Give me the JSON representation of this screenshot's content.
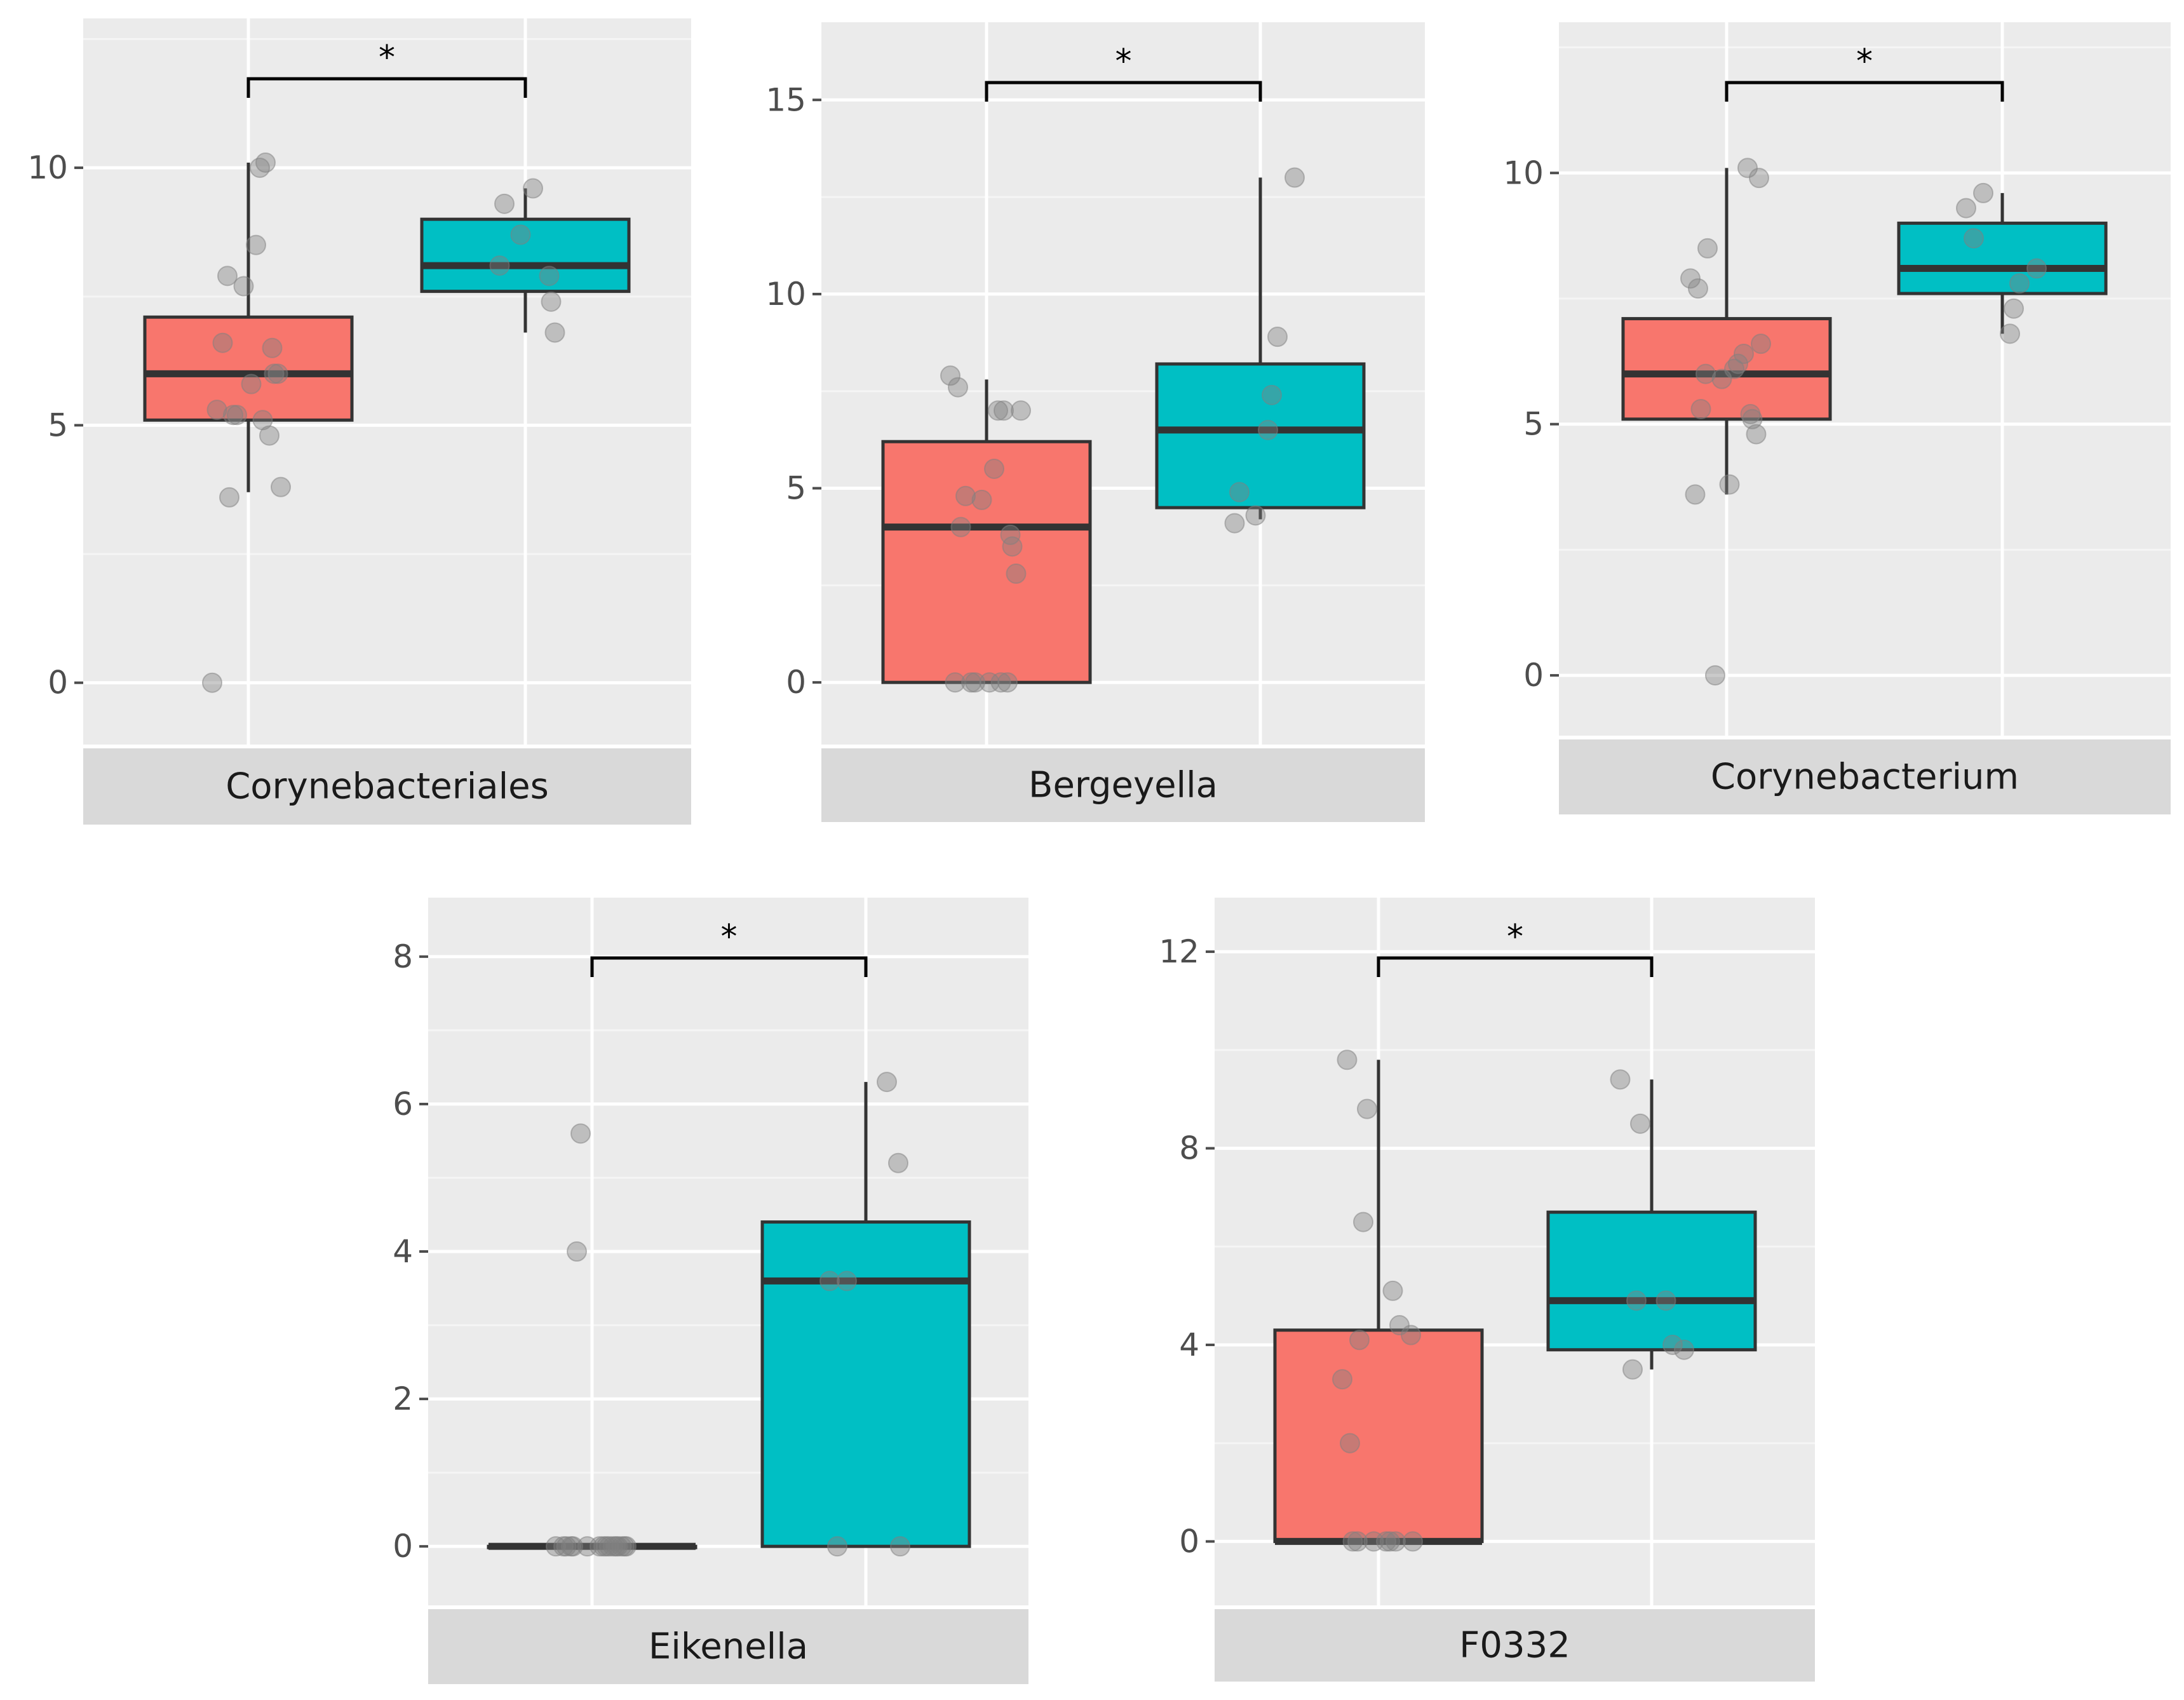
{
  "figure": {
    "colors": {
      "panel_bg": "#EBEBEB",
      "grid_major": "#FFFFFF",
      "grid_minor": "#F5F5F5",
      "strip_bg": "#D9D9D9",
      "group1_fill": "#F8766D",
      "group2_fill": "#00BFC4",
      "box_line": "#333333",
      "point": "#808080",
      "text": "#4D4D4D",
      "bracket": "#000000"
    }
  },
  "chart_data": [
    {
      "type": "boxplot",
      "title": "Corynebacteriales",
      "significance": "*",
      "ylim": [
        -1.2,
        12.9
      ],
      "yticks": [
        0,
        5,
        10
      ],
      "ytick_labels": [
        "0",
        "5",
        "10"
      ],
      "groups": [
        {
          "min": 3.7,
          "q1": 5.1,
          "median": 6.0,
          "q3": 7.1,
          "max": 10.1,
          "points": [
            0.0,
            3.6,
            3.8,
            4.8,
            5.1,
            5.2,
            5.2,
            5.3,
            5.8,
            6.0,
            6.0,
            6.5,
            6.6,
            7.7,
            7.9,
            8.5,
            10.0,
            10.1
          ]
        },
        {
          "min": 6.8,
          "q1": 7.6,
          "median": 8.1,
          "q3": 9.0,
          "max": 9.6,
          "points": [
            6.8,
            7.4,
            7.9,
            8.1,
            8.7,
            9.3,
            9.6
          ]
        }
      ]
    },
    {
      "type": "boxplot",
      "title": "Bergeyella",
      "significance": "*",
      "ylim": [
        -1.6,
        17.0
      ],
      "yticks": [
        0,
        5,
        10,
        15
      ],
      "ytick_labels": [
        "0",
        "5",
        "10",
        "15"
      ],
      "groups": [
        {
          "min": 0.0,
          "q1": 0.0,
          "median": 4.0,
          "q3": 6.2,
          "max": 7.8,
          "points": [
            0.0,
            0.0,
            0.0,
            0.0,
            0.0,
            0.0,
            2.8,
            3.5,
            3.8,
            4.0,
            4.7,
            4.8,
            5.5,
            7.0,
            7.0,
            7.0,
            7.6,
            7.9
          ]
        },
        {
          "min": 4.2,
          "q1": 4.5,
          "median": 6.5,
          "q3": 8.2,
          "max": 13.0,
          "points": [
            4.1,
            4.3,
            4.9,
            6.5,
            7.4,
            8.9,
            13.0
          ]
        }
      ]
    },
    {
      "type": "boxplot",
      "title": "Corynebacterium",
      "significance": "*",
      "ylim": [
        -1.2,
        13.0
      ],
      "yticks": [
        0,
        5,
        10
      ],
      "ytick_labels": [
        "0",
        "5",
        "10"
      ],
      "groups": [
        {
          "min": 3.6,
          "q1": 5.1,
          "median": 6.0,
          "q3": 7.1,
          "max": 10.1,
          "points": [
            0.0,
            3.6,
            3.8,
            4.8,
            5.1,
            5.2,
            5.3,
            5.9,
            6.0,
            6.1,
            6.2,
            6.4,
            6.6,
            7.7,
            7.9,
            8.5,
            9.9,
            10.1
          ]
        },
        {
          "min": 6.8,
          "q1": 7.6,
          "median": 8.1,
          "q3": 9.0,
          "max": 9.6,
          "points": [
            6.8,
            7.3,
            7.8,
            8.1,
            8.7,
            9.3,
            9.6
          ]
        }
      ]
    },
    {
      "type": "boxplot",
      "title": "Eikenella",
      "significance": "*",
      "ylim": [
        -0.8,
        8.8
      ],
      "yticks": [
        0,
        2,
        4,
        6,
        8
      ],
      "ytick_labels": [
        "0",
        "2",
        "4",
        "6",
        "8"
      ],
      "groups": [
        {
          "min": 0.0,
          "q1": 0.0,
          "median": 0.0,
          "q3": 0.0,
          "max": 0.0,
          "points": [
            0.0,
            0.0,
            0.0,
            0.0,
            0.0,
            0.0,
            0.0,
            0.0,
            0.0,
            0.0,
            0.0,
            0.0,
            0.0,
            0.0,
            0.0,
            0.0,
            4.0,
            5.6
          ]
        },
        {
          "min": 0.0,
          "q1": 0.0,
          "median": 3.6,
          "q3": 4.4,
          "max": 6.3,
          "points": [
            0.0,
            0.0,
            3.6,
            3.6,
            5.2,
            6.3
          ]
        }
      ]
    },
    {
      "type": "boxplot",
      "title": "F0332",
      "significance": "*",
      "ylim": [
        -1.3,
        13.1
      ],
      "yticks": [
        0,
        4,
        8,
        12
      ],
      "ytick_labels": [
        "0",
        "4",
        "8",
        "12"
      ],
      "groups": [
        {
          "min": 0.0,
          "q1": 0.0,
          "median": 0.0,
          "q3": 4.3,
          "max": 9.8,
          "points": [
            0.0,
            0.0,
            0.0,
            0.0,
            0.0,
            0.0,
            0.0,
            2.0,
            3.3,
            4.1,
            4.2,
            4.4,
            5.1,
            6.5,
            8.8,
            9.8
          ]
        },
        {
          "min": 3.5,
          "q1": 3.9,
          "median": 4.9,
          "q3": 6.7,
          "max": 9.4,
          "points": [
            3.5,
            3.9,
            4.0,
            4.9,
            4.9,
            8.5,
            9.4
          ]
        }
      ]
    }
  ]
}
